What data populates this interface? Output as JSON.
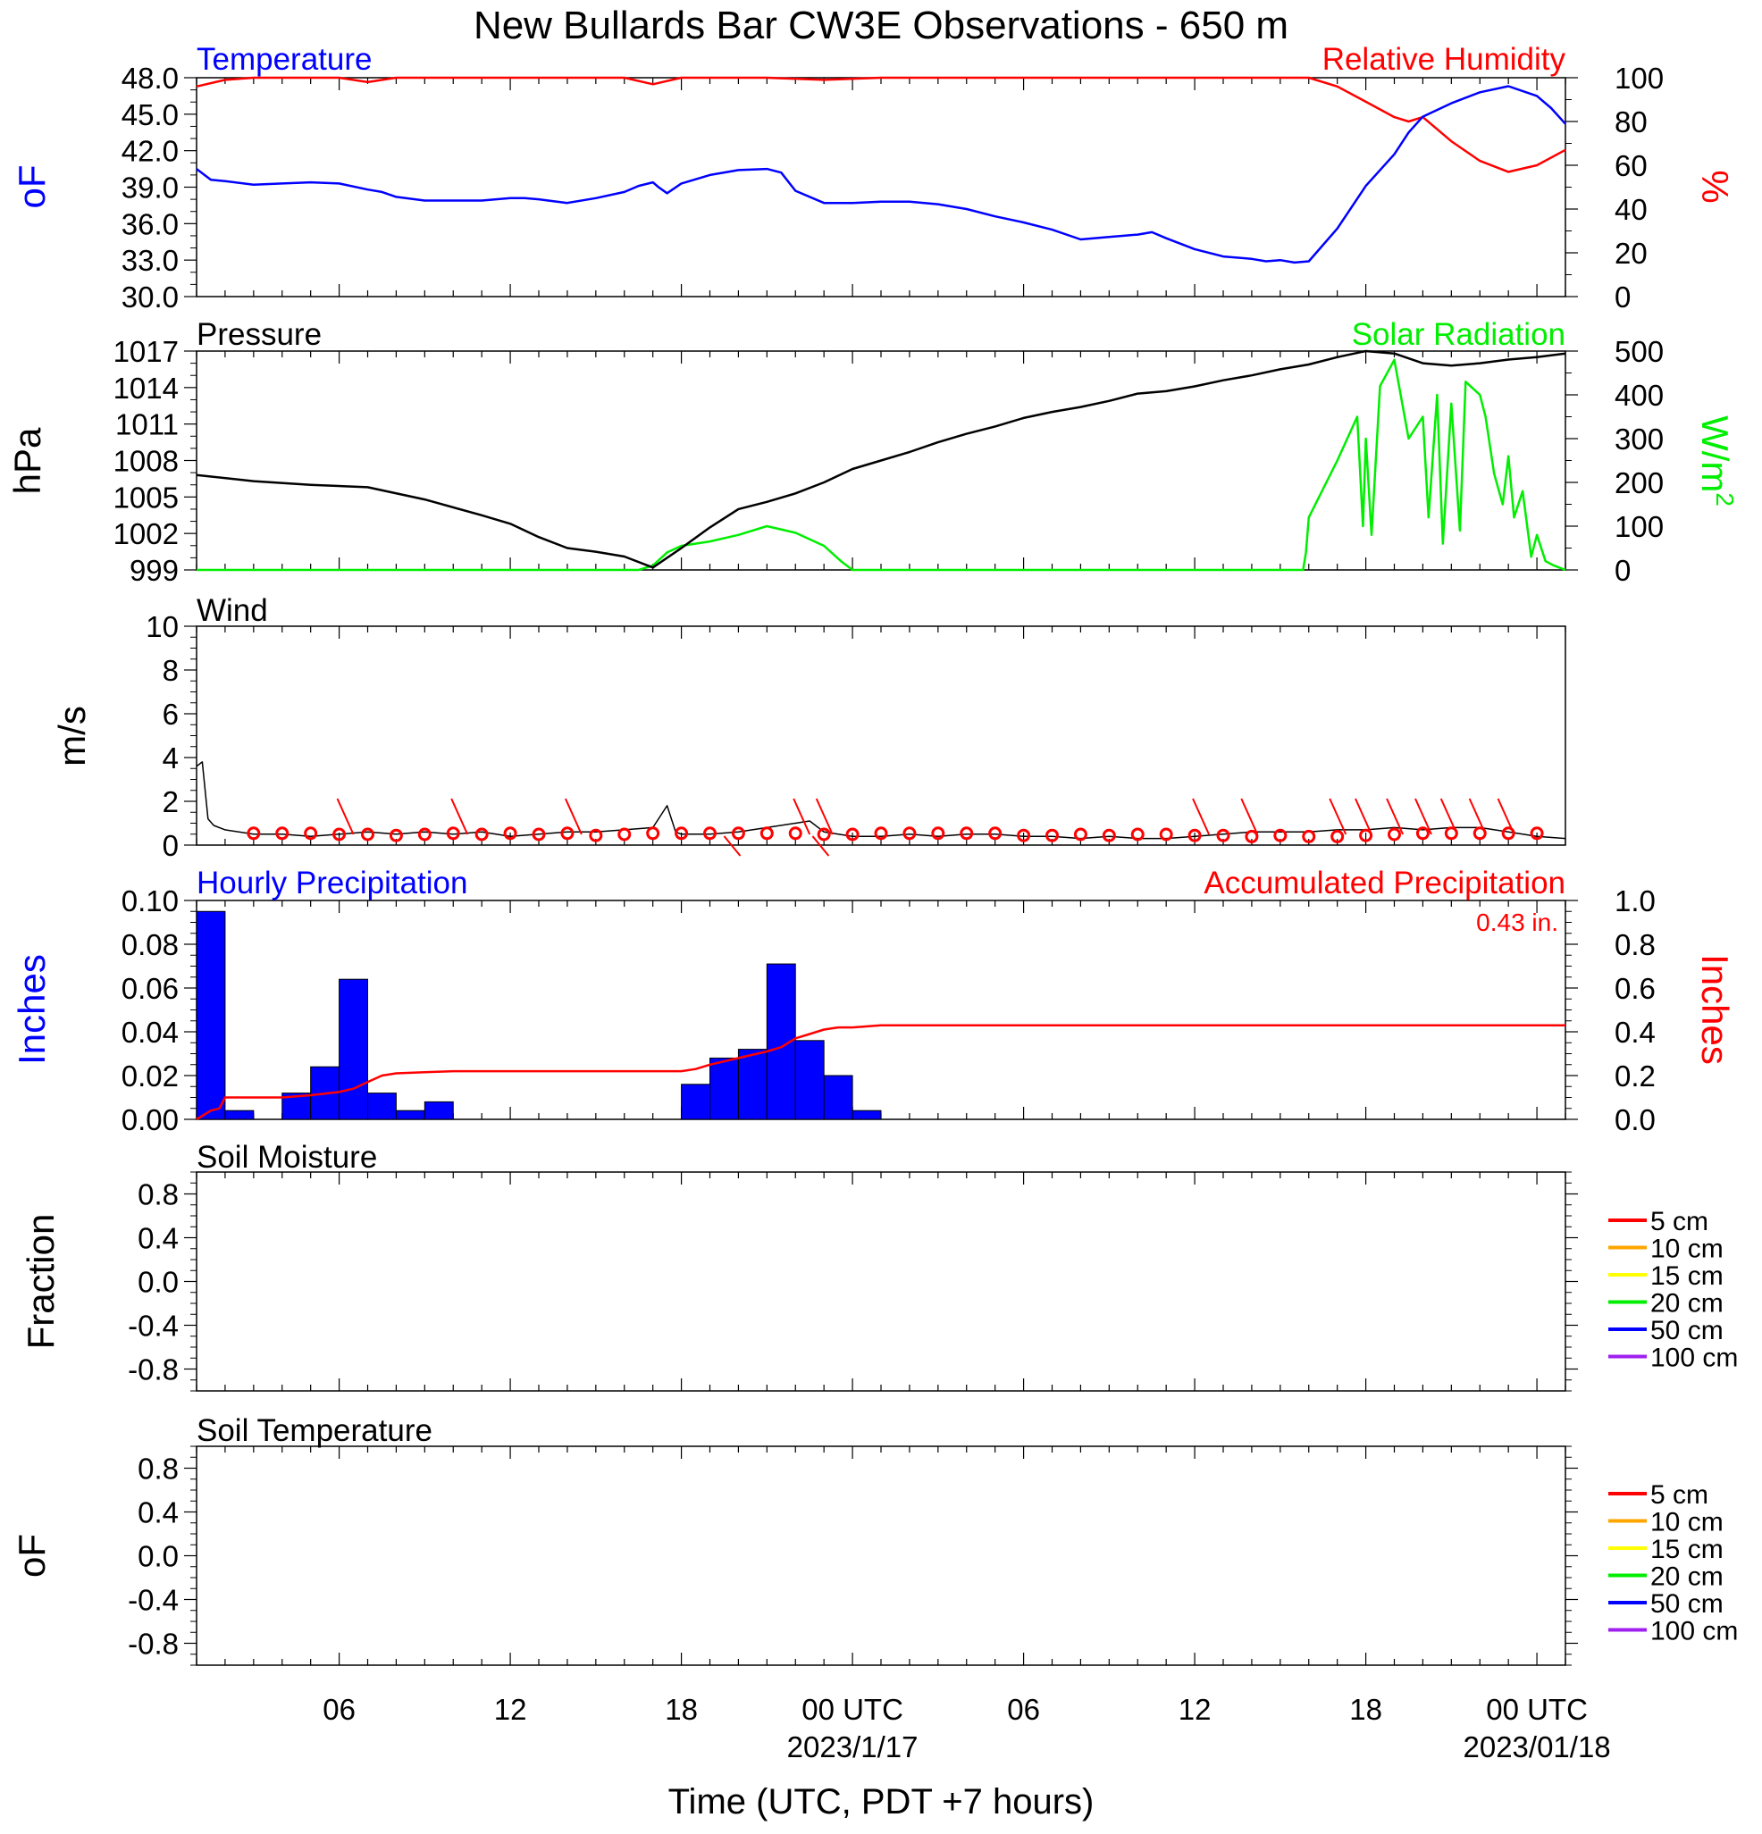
{
  "title": "New Bullards Bar CW3E Observations - 650 m",
  "colors": {
    "blue": "#0000ff",
    "red": "#ff0000",
    "green": "#00ee00",
    "black": "#000000",
    "orange": "#ffa500",
    "yellow": "#ffff00",
    "purple": "#a020f0"
  },
  "x_axis": {
    "label": "Time (UTC, PDT +7 hours)",
    "range_hours": [
      0,
      48
    ],
    "tick_labels": [
      {
        "hour": 5,
        "text": "06"
      },
      {
        "hour": 11,
        "text": "12"
      },
      {
        "hour": 17,
        "text": "18"
      },
      {
        "hour": 23,
        "text": "00 UTC",
        "sub": "2023/1/17"
      },
      {
        "hour": 29,
        "text": "06"
      },
      {
        "hour": 35,
        "text": "12"
      },
      {
        "hour": 41,
        "text": "18"
      },
      {
        "hour": 47,
        "text": "00 UTC",
        "sub": "2023/01/18"
      }
    ]
  },
  "panels": {
    "temperature": {
      "left_title": "Temperature",
      "right_title": "Relative Humidity",
      "left_unit": "oF",
      "right_unit": "%",
      "left_ticks": [
        "48.0",
        "45.0",
        "42.0",
        "39.0",
        "36.0",
        "33.0",
        "30.0"
      ],
      "right_ticks": [
        "100",
        "80",
        "60",
        "40",
        "20",
        "0"
      ]
    },
    "pressure": {
      "left_title": "Pressure",
      "right_title": "Solar Radiation",
      "left_unit": "hPa",
      "right_unit": "W/m",
      "right_unit_sup": "2",
      "left_ticks": [
        "1017",
        "1014",
        "1011",
        "1008",
        "1005",
        "1002",
        "999"
      ],
      "right_ticks": [
        "500",
        "400",
        "300",
        "200",
        "100",
        "0"
      ]
    },
    "wind": {
      "left_title": "Wind",
      "left_unit": "m/s",
      "left_ticks": [
        "10",
        "8",
        "6",
        "4",
        "2",
        "0"
      ]
    },
    "precip": {
      "left_title": "Hourly Precipitation",
      "right_title": "Accumulated Precipitation",
      "total": "0.43 in.",
      "left_unit": "Inches",
      "right_unit": "Inches",
      "left_ticks": [
        "0.10",
        "0.08",
        "0.06",
        "0.04",
        "0.02",
        "0.00"
      ],
      "right_ticks": [
        "1.0",
        "0.8",
        "0.6",
        "0.4",
        "0.2",
        "0.0"
      ]
    },
    "soil_moisture": {
      "left_title": "Soil Moisture",
      "left_unit": "Fraction",
      "left_ticks": [
        "0.8",
        "0.4",
        "0.0",
        "-0.4",
        "-0.8"
      ],
      "legend": [
        "5 cm",
        "10 cm",
        "15 cm",
        "20 cm",
        "50 cm",
        "100 cm"
      ]
    },
    "soil_temperature": {
      "left_title": "Soil Temperature",
      "left_unit": "oF",
      "left_ticks": [
        "0.8",
        "0.4",
        "0.0",
        "-0.4",
        "-0.8"
      ],
      "legend": [
        "5 cm",
        "10 cm",
        "15 cm",
        "20 cm",
        "50 cm",
        "100 cm"
      ]
    }
  },
  "chart_data": [
    {
      "type": "line",
      "title": "Temperature",
      "ylabel": "oF",
      "ylim": [
        30,
        48
      ],
      "series": [
        {
          "name": "Temperature",
          "x": [
            0,
            0.5,
            1,
            2,
            3,
            4,
            5,
            6,
            6.5,
            7,
            8,
            9,
            10,
            11,
            11.5,
            12,
            13,
            14,
            15,
            15.5,
            16,
            16.2,
            16.5,
            17,
            18,
            19,
            20,
            20.5,
            21,
            22,
            23,
            24,
            25,
            26,
            27,
            28,
            29,
            30,
            31,
            32,
            33,
            33.5,
            34,
            35,
            36,
            37,
            37.5,
            38,
            38.5,
            39,
            40,
            41,
            42,
            42.5,
            43,
            44,
            45,
            46,
            47,
            47.5,
            48
          ],
          "values": [
            40.5,
            39.6,
            39.5,
            39.2,
            39.3,
            39.4,
            39.3,
            38.8,
            38.6,
            38.2,
            37.9,
            37.9,
            37.9,
            38.1,
            38.1,
            38.0,
            37.7,
            38.1,
            38.6,
            39.1,
            39.4,
            39.0,
            38.5,
            39.3,
            40.0,
            40.4,
            40.5,
            40.2,
            38.7,
            37.7,
            37.7,
            37.8,
            37.8,
            37.6,
            37.2,
            36.6,
            36.1,
            35.5,
            34.7,
            34.9,
            35.1,
            35.3,
            34.8,
            33.9,
            33.3,
            33.1,
            32.9,
            33.0,
            32.8,
            32.9,
            35.6,
            39.1,
            41.7,
            43.5,
            44.8,
            45.9,
            46.8,
            47.3,
            46.5,
            45.5,
            44.2
          ]
        }
      ]
    },
    {
      "type": "line",
      "title": "Relative Humidity",
      "ylabel": "%",
      "ylim": [
        0,
        100
      ],
      "series": [
        {
          "name": "Relative Humidity",
          "x": [
            0,
            1,
            2,
            3,
            5,
            6,
            7,
            10,
            12,
            14,
            15,
            16,
            17,
            18,
            20,
            22,
            24,
            30,
            36,
            39,
            40,
            41,
            42,
            42.5,
            43,
            44,
            45,
            46,
            47,
            48
          ],
          "values": [
            96,
            99,
            100,
            100,
            100,
            98,
            100,
            100,
            100,
            100,
            100,
            97,
            100,
            100,
            100,
            99,
            100,
            100,
            100,
            100,
            96,
            89,
            82,
            80,
            82,
            71,
            62,
            57,
            60,
            67
          ]
        }
      ]
    },
    {
      "type": "line",
      "title": "Pressure",
      "ylabel": "hPa",
      "ylim": [
        999,
        1017
      ],
      "series": [
        {
          "name": "Pressure",
          "x": [
            0,
            2,
            4,
            6,
            8,
            10,
            11,
            12,
            13,
            14,
            15,
            16,
            17,
            18,
            19,
            20,
            21,
            22,
            23,
            24,
            25,
            26,
            27,
            28,
            29,
            30,
            31,
            32,
            33,
            34,
            35,
            36,
            37,
            38,
            39,
            40,
            41,
            42,
            43,
            44,
            45,
            46,
            47,
            48
          ],
          "values": [
            1006.8,
            1006.3,
            1006.0,
            1005.8,
            1004.8,
            1003.5,
            1002.8,
            1001.7,
            1000.8,
            1000.5,
            1000.1,
            999.2,
            1000.8,
            1002.5,
            1004.0,
            1004.6,
            1005.3,
            1006.2,
            1007.3,
            1008.0,
            1008.7,
            1009.5,
            1010.2,
            1010.8,
            1011.5,
            1012.0,
            1012.4,
            1012.9,
            1013.5,
            1013.7,
            1014.1,
            1014.6,
            1015.0,
            1015.5,
            1015.9,
            1016.5,
            1017.0,
            1016.8,
            1016.0,
            1015.8,
            1016.0,
            1016.3,
            1016.5,
            1016.8
          ]
        }
      ]
    },
    {
      "type": "line",
      "title": "Solar Radiation",
      "ylabel": "W/m2",
      "ylim": [
        0,
        500
      ],
      "series": [
        {
          "name": "Solar Radiation",
          "x": [
            0,
            15.5,
            16,
            16.5,
            17,
            18,
            19,
            20,
            21,
            22,
            22.6,
            23,
            29,
            38.8,
            38.9,
            39,
            40,
            40.7,
            40.9,
            41,
            41.2,
            41.5,
            42,
            42.5,
            43,
            43.2,
            43.5,
            43.7,
            44,
            44.3,
            44.5,
            45,
            45.2,
            45.5,
            45.8,
            46,
            46.2,
            46.5,
            46.8,
            47,
            47.3,
            47.6,
            48
          ],
          "values": [
            0,
            0,
            10,
            40,
            55,
            65,
            80,
            100,
            85,
            55,
            20,
            0,
            0,
            0,
            40,
            120,
            250,
            350,
            100,
            300,
            80,
            420,
            480,
            300,
            350,
            120,
            400,
            60,
            380,
            90,
            430,
            400,
            350,
            220,
            150,
            260,
            120,
            180,
            30,
            80,
            20,
            10,
            0
          ]
        }
      ]
    },
    {
      "type": "line",
      "title": "Wind",
      "ylabel": "m/s",
      "ylim": [
        0,
        10
      ],
      "series": [
        {
          "name": "Wind speed",
          "x": [
            0,
            0.2,
            0.4,
            0.6,
            1,
            2,
            3,
            4,
            5,
            6,
            7,
            8,
            9,
            10,
            11,
            12,
            13,
            14,
            15,
            16,
            16.5,
            16.8,
            17,
            18,
            19,
            20,
            21,
            21.5,
            22,
            23,
            24,
            25,
            26,
            27,
            28,
            29,
            30,
            31,
            32,
            33,
            34,
            35,
            36,
            37,
            38,
            39,
            40,
            41,
            42,
            43,
            44,
            45,
            46,
            47,
            48
          ],
          "values": [
            3.6,
            3.8,
            1.2,
            0.9,
            0.7,
            0.5,
            0.5,
            0.4,
            0.5,
            0.6,
            0.5,
            0.6,
            0.5,
            0.6,
            0.4,
            0.5,
            0.6,
            0.6,
            0.7,
            0.8,
            1.8,
            0.6,
            0.5,
            0.5,
            0.6,
            0.8,
            1.0,
            1.1,
            0.6,
            0.4,
            0.4,
            0.5,
            0.4,
            0.5,
            0.5,
            0.4,
            0.4,
            0.3,
            0.4,
            0.3,
            0.3,
            0.4,
            0.5,
            0.6,
            0.6,
            0.6,
            0.7,
            0.7,
            0.8,
            0.7,
            0.8,
            0.8,
            0.6,
            0.4,
            0.3
          ]
        }
      ]
    },
    {
      "type": "bar",
      "title": "Hourly Precipitation",
      "ylabel": "Inches",
      "ylim": [
        0,
        0.1
      ],
      "x": [
        0,
        1,
        2,
        3,
        4,
        5,
        6,
        7,
        8,
        9,
        10,
        11,
        12,
        13,
        14,
        15,
        16,
        17,
        18,
        19,
        20,
        21,
        22,
        23,
        24
      ],
      "values": [
        0.095,
        0.004,
        0,
        0.012,
        0.024,
        0.064,
        0.012,
        0.004,
        0.008,
        0,
        0,
        0,
        0,
        0,
        0,
        0,
        0,
        0.016,
        0.028,
        0.032,
        0.071,
        0.036,
        0.02,
        0.004,
        0
      ]
    },
    {
      "type": "line",
      "title": "Accumulated Precipitation",
      "ylabel": "Inches",
      "ylim": [
        0,
        1.0
      ],
      "series": [
        {
          "name": "Accumulated Precipitation",
          "x": [
            0,
            0.5,
            0.8,
            1,
            2,
            3,
            4,
            5,
            5.5,
            6,
            6.5,
            7,
            8,
            9,
            10,
            11,
            12,
            13,
            14,
            15,
            16,
            17,
            17.5,
            18,
            19,
            20,
            20.5,
            21,
            21.5,
            22,
            22.5,
            23,
            24,
            30,
            36,
            42,
            48
          ],
          "values": [
            0,
            0.04,
            0.05,
            0.1,
            0.1,
            0.1,
            0.11,
            0.125,
            0.14,
            0.17,
            0.2,
            0.21,
            0.215,
            0.22,
            0.22,
            0.22,
            0.22,
            0.22,
            0.22,
            0.22,
            0.22,
            0.22,
            0.23,
            0.25,
            0.28,
            0.31,
            0.33,
            0.37,
            0.39,
            0.41,
            0.42,
            0.42,
            0.43,
            0.43,
            0.43,
            0.43,
            0.43
          ]
        }
      ]
    }
  ]
}
